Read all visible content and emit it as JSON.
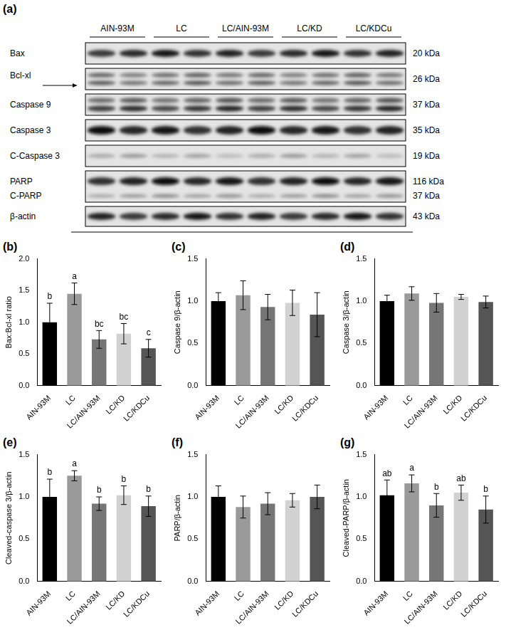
{
  "blot": {
    "panel_label": "(a)",
    "groups": [
      "AIN-93M",
      "LC",
      "LC/AIN-93M",
      "LC/KD",
      "LC/KDCu"
    ],
    "rows": [
      {
        "labels": [
          "Bax"
        ],
        "sizes": [
          "20 kDa"
        ]
      },
      {
        "labels": [
          "Bcl-xl"
        ],
        "sizes": [
          "26 kDa"
        ]
      },
      {
        "labels": [
          "Caspase 9"
        ],
        "sizes": [
          "37 kDa"
        ]
      },
      {
        "labels": [
          "Caspase 3"
        ],
        "sizes": [
          "35 kDa"
        ]
      },
      {
        "labels": [
          "C-Caspase 3"
        ],
        "sizes": [
          "19 kDa"
        ]
      },
      {
        "labels": [
          "PARP",
          "C-PARP"
        ],
        "sizes": [
          "116 kDa",
          "37 kDa"
        ]
      },
      {
        "labels": [
          "β-actin"
        ],
        "sizes": [
          "43 kDa"
        ]
      }
    ]
  },
  "chart_data": [
    {
      "panel_label": "(b)",
      "type": "bar",
      "y_label": "Bax:Bcl-xl ratio",
      "categories": [
        "AIN-93M",
        "LC",
        "LC/AIN-93M",
        "LC/KD",
        "LC/KDCu"
      ],
      "values": [
        1.0,
        1.45,
        0.73,
        0.82,
        0.59
      ],
      "errors": [
        0.3,
        0.17,
        0.14,
        0.16,
        0.14
      ],
      "letters": [
        "b",
        "a",
        "bc",
        "bc",
        "c"
      ],
      "colors": [
        "#000000",
        "#9a9a9a",
        "#767676",
        "#d2d2d2",
        "#555555"
      ],
      "ylim": [
        0,
        2.0
      ],
      "yticks": [
        {
          "value": 0,
          "label": "0.0"
        },
        {
          "value": 0.5,
          "label": "0.5"
        },
        {
          "value": 1.0,
          "label": "1.0"
        },
        {
          "value": 1.5,
          "label": "1.5"
        },
        {
          "value": 2.0,
          "label": "2.0"
        }
      ]
    },
    {
      "panel_label": "(c)",
      "type": "bar",
      "y_label": "Caspase 9/β-actin",
      "categories": [
        "AIN-93M",
        "LC",
        "LC/AIN-93M",
        "LC/KD",
        "LC/KDCu"
      ],
      "values": [
        1.0,
        1.07,
        0.93,
        0.98,
        0.84
      ],
      "errors": [
        0.1,
        0.17,
        0.15,
        0.15,
        0.26
      ],
      "colors": [
        "#000000",
        "#9a9a9a",
        "#767676",
        "#d2d2d2",
        "#555555"
      ],
      "ylim": [
        0,
        1.5
      ],
      "yticks": [
        {
          "value": 0,
          "label": "0.0"
        },
        {
          "value": 0.5,
          "label": "0.5"
        },
        {
          "value": 1.0,
          "label": "1.0"
        },
        {
          "value": 1.5,
          "label": "1.5"
        }
      ]
    },
    {
      "panel_label": "(d)",
      "type": "bar",
      "y_label": "Caspase 3/β-actin",
      "categories": [
        "AIN-93M",
        "LC",
        "LC/AIN-93M",
        "LC/KD",
        "LC/KDCu"
      ],
      "values": [
        1.0,
        1.09,
        0.98,
        1.05,
        0.99
      ],
      "errors": [
        0.07,
        0.08,
        0.11,
        0.03,
        0.07
      ],
      "colors": [
        "#000000",
        "#9a9a9a",
        "#767676",
        "#d2d2d2",
        "#555555"
      ],
      "ylim": [
        0,
        1.5
      ],
      "yticks": [
        {
          "value": 0,
          "label": "0.0"
        },
        {
          "value": 0.5,
          "label": "0.5"
        },
        {
          "value": 1.0,
          "label": "1.0"
        },
        {
          "value": 1.5,
          "label": "1.5"
        }
      ]
    },
    {
      "panel_label": "(e)",
      "type": "bar",
      "y_label": "Cleaved-caspase 3/β-actin",
      "categories": [
        "AIN-93M",
        "LC",
        "LC/AIN-93M",
        "LC/KD",
        "LC/KDCu"
      ],
      "values": [
        1.0,
        1.25,
        0.92,
        1.02,
        0.89
      ],
      "errors": [
        0.21,
        0.06,
        0.08,
        0.11,
        0.12
      ],
      "letters": [
        "b",
        "a",
        "b",
        "b",
        "b"
      ],
      "colors": [
        "#000000",
        "#9a9a9a",
        "#767676",
        "#d2d2d2",
        "#555555"
      ],
      "ylim": [
        0,
        1.5
      ],
      "yticks": [
        {
          "value": 0,
          "label": "0.0"
        },
        {
          "value": 0.5,
          "label": "0.5"
        },
        {
          "value": 1.0,
          "label": "1.0"
        },
        {
          "value": 1.5,
          "label": "1.5"
        }
      ]
    },
    {
      "panel_label": "(f)",
      "type": "bar",
      "y_label": "PARP/β-actin",
      "categories": [
        "AIN-93M",
        "LC",
        "LC/AIN-93M",
        "LC/KD",
        "LC/KDCu"
      ],
      "values": [
        1.0,
        0.88,
        0.92,
        0.96,
        1.0
      ],
      "errors": [
        0.13,
        0.13,
        0.13,
        0.08,
        0.14
      ],
      "colors": [
        "#000000",
        "#9a9a9a",
        "#767676",
        "#d2d2d2",
        "#555555"
      ],
      "ylim": [
        0,
        1.5
      ],
      "yticks": [
        {
          "value": 0,
          "label": "0.0"
        },
        {
          "value": 0.5,
          "label": "0.5"
        },
        {
          "value": 1.0,
          "label": "1.0"
        },
        {
          "value": 1.5,
          "label": "1.5"
        }
      ]
    },
    {
      "panel_label": "(g)",
      "type": "bar",
      "y_label": "Cleaved-PARP/β-actin",
      "categories": [
        "AIN-93M",
        "LC",
        "LC/AIN-93M",
        "LC/KD",
        "LC/KDCu"
      ],
      "values": [
        1.02,
        1.16,
        0.9,
        1.05,
        0.85
      ],
      "errors": [
        0.18,
        0.1,
        0.14,
        0.09,
        0.16
      ],
      "letters": [
        "ab",
        "a",
        "b",
        "ab",
        "b"
      ],
      "colors": [
        "#000000",
        "#9a9a9a",
        "#767676",
        "#d2d2d2",
        "#555555"
      ],
      "ylim": [
        0,
        1.5
      ],
      "yticks": [
        {
          "value": 0,
          "label": "0.0"
        },
        {
          "value": 0.5,
          "label": "0.5"
        },
        {
          "value": 1.0,
          "label": "1.0"
        },
        {
          "value": 1.5,
          "label": "1.5"
        }
      ]
    }
  ]
}
